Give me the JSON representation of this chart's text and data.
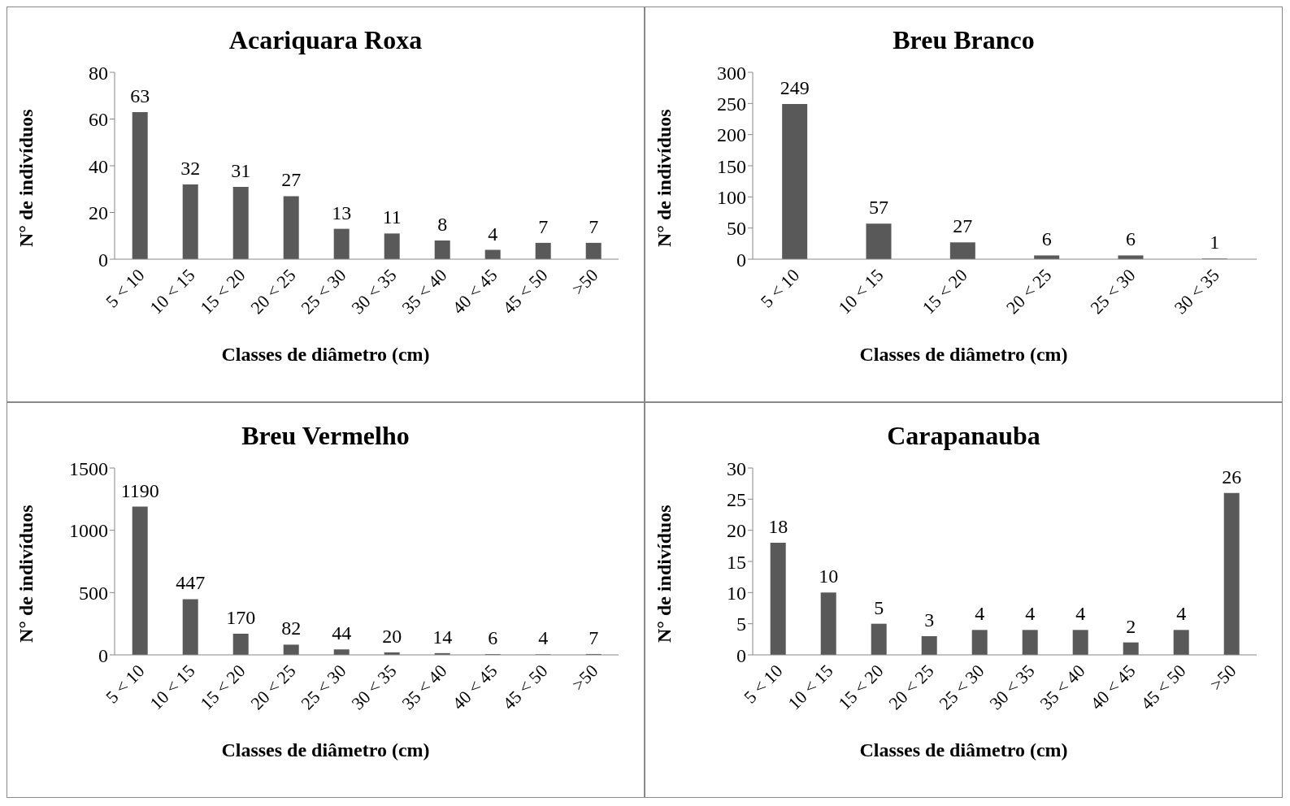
{
  "chart_data": [
    {
      "type": "bar",
      "title": "Acariquara Roxa",
      "xlabel": "Classes de diâmetro (cm)",
      "ylabel": "N° de indivíduos",
      "categories": [
        "5 < 10",
        "10 < 15",
        "15 < 20",
        "20 < 25",
        "25 < 30",
        "30 < 35",
        "35 < 40",
        "40 < 45",
        "45 < 50",
        ">50"
      ],
      "values": [
        63,
        32,
        31,
        27,
        13,
        11,
        8,
        4,
        7,
        7
      ],
      "color": "#595959",
      "ylim": [
        0,
        80
      ],
      "yticks": [
        0,
        20,
        40,
        60,
        80
      ],
      "data_labels": true
    },
    {
      "type": "bar",
      "title": "Breu Branco",
      "xlabel": "Classes de diâmetro (cm)",
      "ylabel": "N° de indivíduos",
      "categories": [
        "5 < 10",
        "10 < 15",
        "15 < 20",
        "20 < 25",
        "25 < 30",
        "30 < 35"
      ],
      "values": [
        249,
        57,
        27,
        6,
        6,
        1
      ],
      "color": "#595959",
      "ylim": [
        0,
        300
      ],
      "yticks": [
        0,
        50,
        100,
        150,
        200,
        250,
        300
      ],
      "data_labels": true
    },
    {
      "type": "bar",
      "title": "Breu Vermelho",
      "xlabel": "Classes de diâmetro (cm)",
      "ylabel": "N° de indivíduos",
      "categories": [
        "5 < 10",
        "10 < 15",
        "15 < 20",
        "20 < 25",
        "25 < 30",
        "30 < 35",
        "35 < 40",
        "40 < 45",
        "45 < 50",
        ">50"
      ],
      "values": [
        1190,
        447,
        170,
        82,
        44,
        20,
        14,
        6,
        4,
        7
      ],
      "color": "#595959",
      "ylim": [
        0,
        1500
      ],
      "yticks": [
        0,
        500,
        1000,
        1500
      ],
      "data_labels": true
    },
    {
      "type": "bar",
      "title": "Carapanauba",
      "xlabel": "Classes de diâmetro (cm)",
      "ylabel": "N° de indivíduos",
      "categories": [
        "5 < 10",
        "10 < 15",
        "15 < 20",
        "20 < 25",
        "25 < 30",
        "30 < 35",
        "35 < 40",
        "40 < 45",
        "45 < 50",
        ">50"
      ],
      "values": [
        18,
        10,
        5,
        3,
        4,
        4,
        4,
        2,
        4,
        26
      ],
      "color": "#595959",
      "ylim": [
        0,
        30
      ],
      "yticks": [
        0,
        5,
        10,
        15,
        20,
        25,
        30
      ],
      "data_labels": true
    }
  ]
}
